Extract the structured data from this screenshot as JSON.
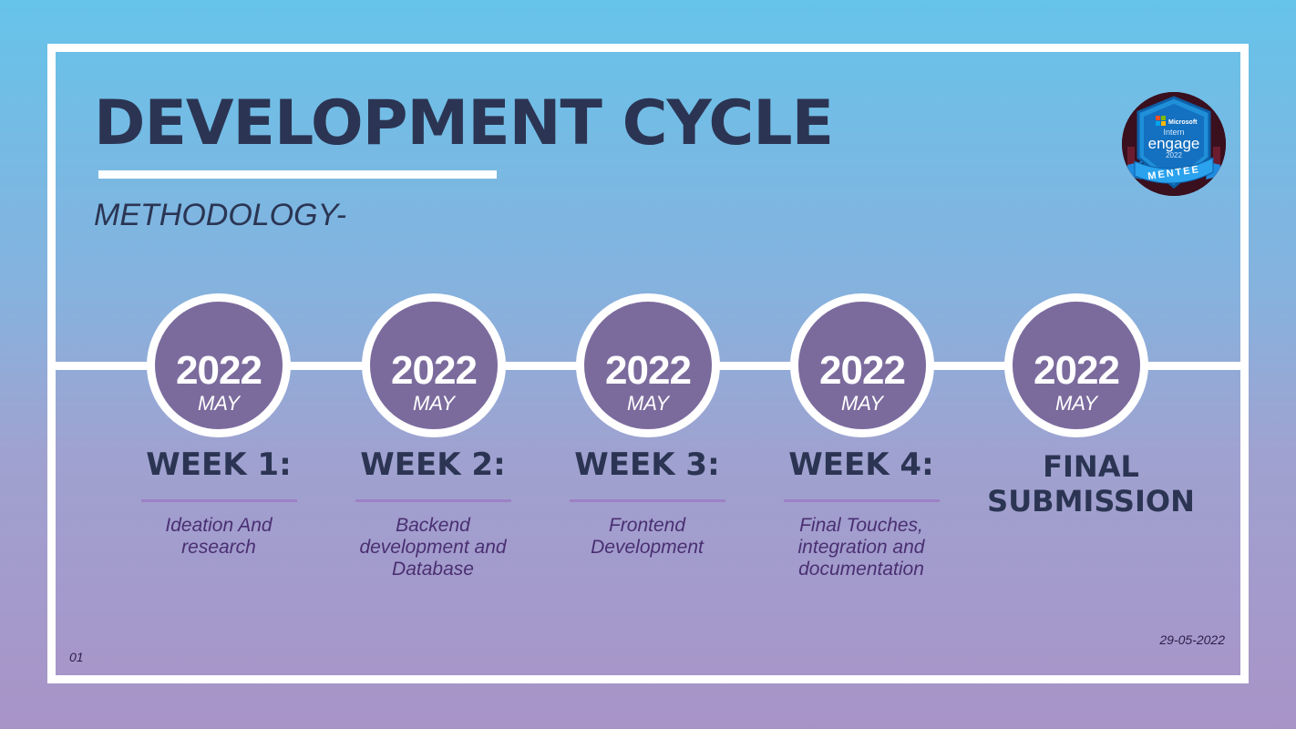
{
  "slide": {
    "title": "DEVELOPMENT CYCLE",
    "subtitle": "METHODOLOGY-",
    "date": "29-05-2022",
    "page_number": "01"
  },
  "badge": {
    "brand": "Microsoft",
    "line1": "Intern",
    "line2": "engage",
    "year": "2022",
    "ribbon": "MENTEE"
  },
  "timeline": [
    {
      "year": "2022",
      "month": "MAY",
      "label": "WEEK 1:",
      "desc_lines": [
        "Ideation And",
        "research"
      ]
    },
    {
      "year": "2022",
      "month": "MAY",
      "label": "WEEK 2:",
      "desc_lines": [
        "Backend",
        "development and",
        "Database"
      ]
    },
    {
      "year": "2022",
      "month": "MAY",
      "label": "WEEK 3:",
      "desc_lines": [
        "Frontend",
        "Development"
      ]
    },
    {
      "year": "2022",
      "month": "MAY",
      "label": "WEEK 4:",
      "desc_lines": [
        "Final Touches,",
        "integration and",
        "documentation"
      ]
    },
    {
      "year": "2022",
      "month": "MAY",
      "label_lines": [
        "FINAL",
        "SUBMISSION"
      ]
    }
  ],
  "colors": {
    "bg_top": "#66c3ea",
    "bg_bottom": "#a893c7",
    "circle": "#7b6b9d",
    "heading": "#2b3553",
    "description": "#4a2f72",
    "divider": "#9d80c4"
  }
}
